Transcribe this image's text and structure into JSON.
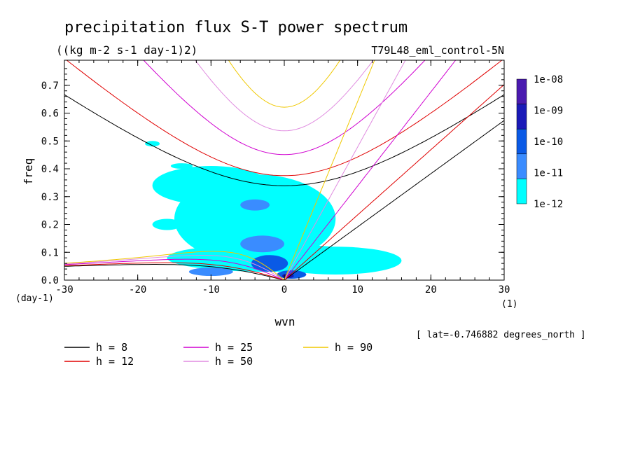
{
  "title": "precipitation flux S-T power spectrum",
  "units": "((kg m-2 s-1 day-1)2)",
  "experiment": "T79L48_eml_control-5N",
  "footnote": "[ lat=-0.746882 degrees_north ]",
  "chart_data": {
    "type": "heatmap",
    "xlabel": "wvn",
    "ylabel": "freq",
    "x_unit": "(1)",
    "y_unit": "(day-1)",
    "xlim": [
      -30,
      30
    ],
    "ylim": [
      0.0,
      0.79
    ],
    "x_ticks": [
      -30,
      -20,
      -10,
      0,
      10,
      20,
      30
    ],
    "x_tick_labels": [
      "-30",
      "-20",
      "-10",
      "0",
      "10",
      "20",
      "30"
    ],
    "y_ticks": [
      0.0,
      0.1,
      0.2,
      0.3,
      0.4,
      0.5,
      0.6,
      0.7
    ],
    "y_tick_labels": [
      "0.0",
      "0.1",
      "0.2",
      "0.3",
      "0.4",
      "0.5",
      "0.6",
      "0.7"
    ],
    "colorbar": {
      "labels": [
        "1e-08",
        "1e-09",
        "1e-10",
        "1e-11",
        "1e-12"
      ],
      "colors": [
        "#4a1ab0",
        "#1a1ab8",
        "#0a5ae6",
        "#3a8cff",
        "#00ffff"
      ]
    },
    "spectrum_patches": [
      {
        "x": -10,
        "y": 0.34,
        "rx": 8,
        "ry": 0.07,
        "level": 0
      },
      {
        "x": -4,
        "y": 0.22,
        "rx": 11,
        "ry": 0.16,
        "level": 0
      },
      {
        "x": -2,
        "y": 0.08,
        "rx": 14,
        "ry": 0.05,
        "level": 0
      },
      {
        "x": 7,
        "y": 0.07,
        "rx": 9,
        "ry": 0.05,
        "level": 0
      },
      {
        "x": -16,
        "y": 0.2,
        "rx": 2,
        "ry": 0.02,
        "level": 0
      },
      {
        "x": -18,
        "y": 0.49,
        "rx": 1,
        "ry": 0.01,
        "level": 0
      },
      {
        "x": -14,
        "y": 0.41,
        "rx": 1.5,
        "ry": 0.01,
        "level": 0
      },
      {
        "x": -3,
        "y": 0.13,
        "rx": 3,
        "ry": 0.03,
        "level": 1
      },
      {
        "x": -4,
        "y": 0.27,
        "rx": 2,
        "ry": 0.02,
        "level": 1
      },
      {
        "x": -10,
        "y": 0.03,
        "rx": 3,
        "ry": 0.015,
        "level": 1
      },
      {
        "x": -2,
        "y": 0.06,
        "rx": 2.5,
        "ry": 0.03,
        "level": 2
      },
      {
        "x": 1,
        "y": 0.02,
        "rx": 2,
        "ry": 0.015,
        "level": 2
      },
      {
        "x": 0.5,
        "y": 0.015,
        "rx": 0.8,
        "ry": 0.008,
        "level": 3
      }
    ],
    "legend": [
      {
        "label": "h =  8",
        "color": "#000000"
      },
      {
        "label": "h = 12",
        "color": "#e00000"
      },
      {
        "label": "h = 25",
        "color": "#d000d0"
      },
      {
        "label": "h = 50",
        "color": "#e08ce0"
      },
      {
        "label": "h = 90",
        "color": "#f0c800"
      }
    ],
    "series": [
      {
        "name": "h =  8",
        "color": "#000000",
        "h": 8
      },
      {
        "name": "h = 12",
        "color": "#e00000",
        "h": 12
      },
      {
        "name": "h = 25",
        "color": "#d000d0",
        "h": 25
      },
      {
        "name": "h = 50",
        "color": "#e08ce0",
        "h": 50
      },
      {
        "name": "h = 90",
        "color": "#f0c800",
        "h": 90
      }
    ],
    "grid": false
  }
}
